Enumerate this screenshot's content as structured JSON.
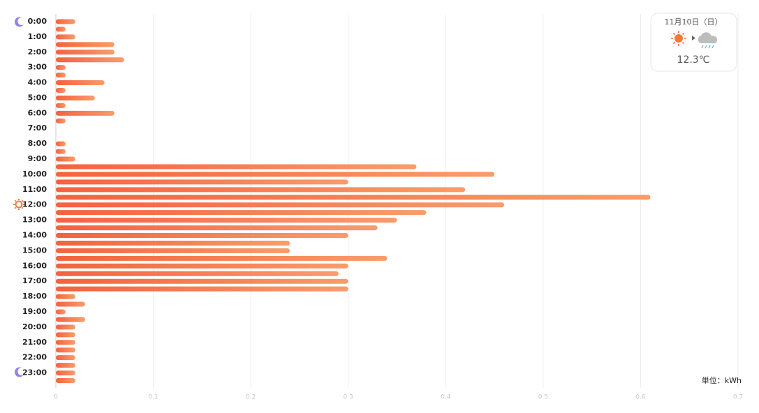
{
  "chart_data": {
    "type": "hbar",
    "categories": [
      "0:00",
      null,
      "1:00",
      null,
      "2:00",
      null,
      "3:00",
      null,
      "4:00",
      null,
      "5:00",
      null,
      "6:00",
      null,
      "7:00",
      null,
      "8:00",
      null,
      "9:00",
      null,
      "10:00",
      null,
      "11:00",
      null,
      "12:00",
      null,
      "13:00",
      null,
      "14:00",
      null,
      "15:00",
      null,
      "16:00",
      null,
      "17:00",
      null,
      "18:00",
      null,
      "19:00",
      null,
      "20:00",
      null,
      "21:00",
      null,
      "22:00",
      null,
      "23:00",
      null
    ],
    "values": [
      0.02,
      0.01,
      0.02,
      0.06,
      0.06,
      0.07,
      0.01,
      0.01,
      0.05,
      0.01,
      0.04,
      0.01,
      0.06,
      0.01,
      0,
      0,
      0.01,
      0.01,
      0.02,
      0.37,
      0.45,
      0.3,
      0.42,
      0.61,
      0.46,
      0.38,
      0.35,
      0.33,
      0.3,
      0.24,
      0.24,
      0.34,
      0.3,
      0.29,
      0.3,
      0.3,
      0.02,
      0.03,
      0.01,
      0.03,
      0.02,
      0.02,
      0.02,
      0.02,
      0.02,
      0.02,
      0.02,
      0.02
    ],
    "color": "#f4623f",
    "color_end": "#f89c6b",
    "xlim": [
      0,
      0.7
    ],
    "xticks": [
      0,
      0.1,
      0.2,
      0.3,
      0.4,
      0.5,
      0.6,
      0.7
    ],
    "grid": true,
    "unit_label": "単位：kWh",
    "weather": {
      "date": "11月10日（日）",
      "temperature": "12.3℃"
    }
  }
}
